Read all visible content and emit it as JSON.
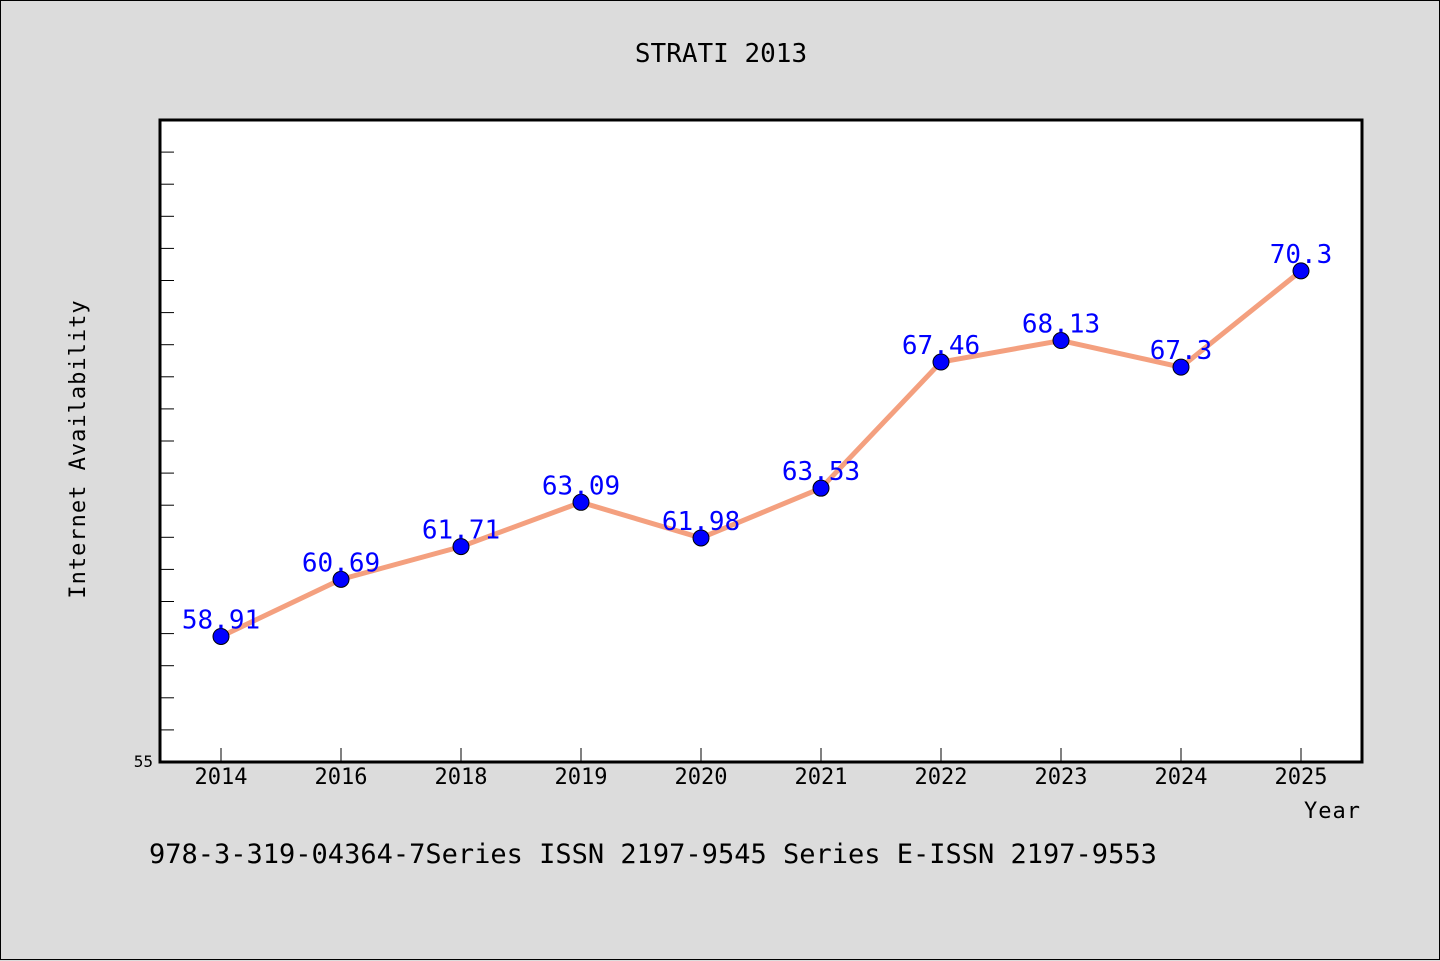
{
  "chart_data": {
    "type": "line",
    "title": "STRATI 2013",
    "xlabel": "Year",
    "ylabel": "Internet Availability",
    "categories": [
      "2014",
      "2016",
      "2018",
      "2019",
      "2020",
      "2021",
      "2022",
      "2023",
      "2024",
      "2025"
    ],
    "series": [
      {
        "values": [
          58.91,
          60.69,
          61.71,
          63.09,
          61.98,
          63.53,
          67.46,
          68.13,
          67.3,
          70.3
        ],
        "data_labels": [
          "58.91",
          "60.69",
          "61.71",
          "63.09",
          "61.98",
          "63.53",
          "67.46",
          "68.13",
          "67.3",
          "70.3"
        ],
        "line_color": "#f4a07f",
        "marker_color": "#0000ff"
      }
    ],
    "ylim": [
      55,
      75
    ],
    "y_tick_label": "55",
    "grid": false
  },
  "footer_text": "978-3-319-04364-7Series ISSN 2197-9545 Series E-ISSN 2197-9553",
  "colors": {
    "background": "#dcdcdc",
    "plot_background": "#ffffff",
    "line": "#f4a07f",
    "marker": "#0000ff",
    "data_label": "#0000ff"
  }
}
